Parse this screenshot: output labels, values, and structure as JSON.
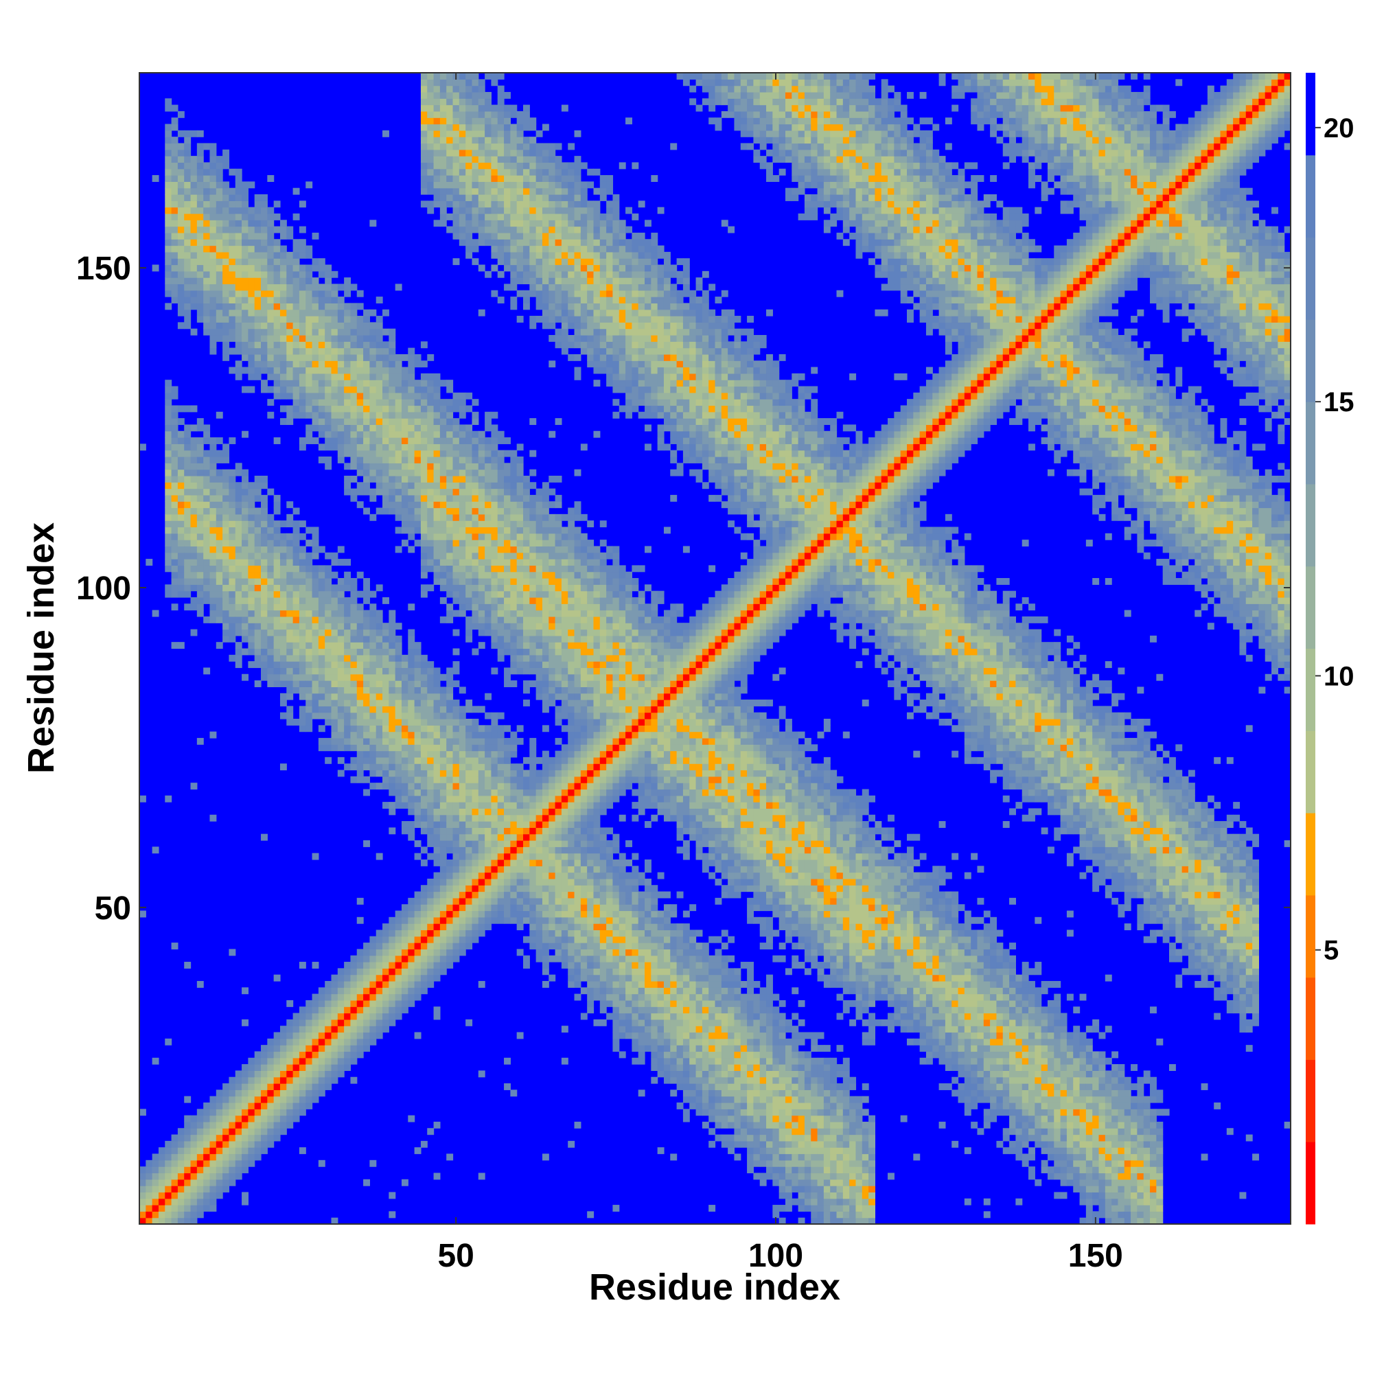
{
  "chart_data": {
    "type": "heatmap",
    "title": "",
    "xlabel": "Residue index",
    "ylabel": "Residue index",
    "n_residues": 180,
    "xlim": [
      1,
      180
    ],
    "ylim": [
      1,
      180
    ],
    "x_ticks": [
      50,
      100,
      150
    ],
    "y_ticks": [
      50,
      100,
      150
    ],
    "colorbar": {
      "ticks": [
        5,
        10,
        15,
        20
      ],
      "range": [
        0,
        21
      ],
      "levels": [
        {
          "max": 1.5,
          "color": "#ff0000"
        },
        {
          "max": 3.0,
          "color": "#ff2a00"
        },
        {
          "max": 4.5,
          "color": "#ff5a00"
        },
        {
          "max": 6.0,
          "color": "#ff8000"
        },
        {
          "max": 7.5,
          "color": "#ffa500"
        },
        {
          "max": 9.0,
          "color": "#b5c48a"
        },
        {
          "max": 10.5,
          "color": "#a8bf94"
        },
        {
          "max": 12.0,
          "color": "#99b39e"
        },
        {
          "max": 13.5,
          "color": "#8aa6a8"
        },
        {
          "max": 15.0,
          "color": "#7b99b0"
        },
        {
          "max": 16.5,
          "color": "#6f8eb6"
        },
        {
          "max": 18.0,
          "color": "#6687bb"
        },
        {
          "max": 19.5,
          "color": "#5f82bf"
        },
        {
          "max": 99,
          "color": "#0000ff"
        }
      ]
    },
    "contact_bands": [
      {
        "a": 20,
        "b": 145,
        "dir": -1,
        "half_width": 12
      },
      {
        "a": 20,
        "b": 100,
        "dir": -1,
        "half_width": 10
      },
      {
        "a": 60,
        "b": 100,
        "dir": -1,
        "half_width": 10
      },
      {
        "a": 60,
        "b": 160,
        "dir": -1,
        "half_width": 11
      },
      {
        "a": 100,
        "b": 180,
        "dir": -1,
        "half_width": 9
      },
      {
        "a": 140,
        "b": 180,
        "dir": -1,
        "half_width": 8
      }
    ],
    "grid": false,
    "legend": "none"
  }
}
